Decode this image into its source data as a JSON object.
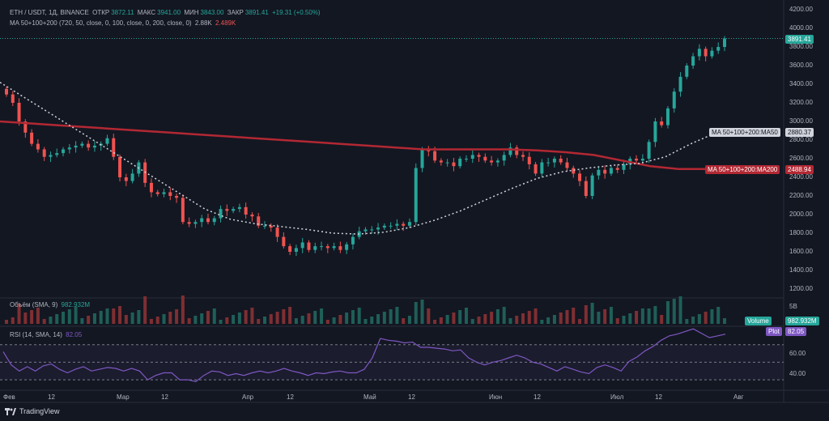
{
  "header": {
    "symbol": "ETH / USDT, 1Д, BINANCE",
    "open_label": "ОТКР",
    "open": "3872.11",
    "high_label": "МАКС",
    "high": "3941.00",
    "low_label": "МИН",
    "low": "3843.00",
    "close_label": "ЗАКР",
    "close": "3891.41",
    "change": "+19.31 (+0.50%)"
  },
  "ma_legend": {
    "title": "MA 50+100+200 (720, 50, close, 0, 100, close, 0, 200, close, 0)",
    "v1": "2.88K",
    "v2": "2.489K"
  },
  "volume_legend": {
    "title": "Объём (SMA, 9)",
    "value": "982.932M"
  },
  "rsi_legend": {
    "title": "RSI (14, SMA, 14)",
    "value": "82.05"
  },
  "price_axis": [
    "4200.00",
    "4000.00",
    "3800.00",
    "3600.00",
    "3400.00",
    "3200.00",
    "3000.00",
    "2800.00",
    "2600.00",
    "2400.00",
    "2200.00",
    "2000.00",
    "1800.00",
    "1600.00",
    "1400.00",
    "1200.00"
  ],
  "volume_axis": [
    "5B"
  ],
  "rsi_axis": [
    "60.00",
    "40.00"
  ],
  "time_axis": [
    "Фев",
    "12",
    "Мар",
    "12",
    "Апр",
    "12",
    "Май",
    "12",
    "Июн",
    "12",
    "Июл",
    "12",
    "Авг"
  ],
  "tags": {
    "last_price": "3891.41",
    "ma50": "MA 50+100+200:MA50",
    "ma50_value": "2880.37",
    "ma200": "MA 50+100+200:MA200",
    "ma200_value": "2488.94",
    "volume_label": "Volume",
    "volume_value": "982.932M",
    "rsi_label": "Plot",
    "rsi_value": "82.05"
  },
  "footer": {
    "brand": "TradingView"
  },
  "colors": {
    "bg": "#131722",
    "up": "#26a69a",
    "down": "#ef5350",
    "ma50": "#d1d4dc",
    "ma200": "#b22833",
    "rsi": "#7e57c2"
  },
  "chart_data": {
    "type": "candlestick",
    "price_range": [
      1200,
      4200
    ],
    "rsi_range": [
      20,
      90
    ],
    "rsi_levels": [
      70,
      50,
      30
    ],
    "close_series": [
      3290,
      3200,
      3000,
      2880,
      2760,
      2700,
      2620,
      2640,
      2660,
      2700,
      2720,
      2740,
      2760,
      2720,
      2740,
      2760,
      2820,
      2620,
      2400,
      2360,
      2440,
      2560,
      2340,
      2240,
      2220,
      2240,
      2200,
      2180,
      1920,
      1900,
      1920,
      1960,
      1920,
      1960,
      2060,
      2040,
      2060,
      2080,
      2000,
      1980,
      1880,
      1880,
      1860,
      1760,
      1660,
      1600,
      1640,
      1700,
      1620,
      1660,
      1660,
      1640,
      1660,
      1620,
      1680,
      1760,
      1820,
      1840,
      1840,
      1860,
      1880,
      1880,
      1900,
      1880,
      1920,
      2500,
      2700,
      2680,
      2580,
      2560,
      2560,
      2520,
      2600,
      2600,
      2640,
      2620,
      2580,
      2560,
      2580,
      2640,
      2720,
      2640,
      2620,
      2540,
      2440,
      2560,
      2560,
      2600,
      2560,
      2500,
      2440,
      2360,
      2200,
      2420,
      2480,
      2440,
      2500,
      2480,
      2540,
      2600,
      2580,
      2600,
      2780,
      3000,
      2960,
      3140,
      3320,
      3480,
      3600,
      3700,
      3780,
      3700,
      3760,
      3800,
      3891
    ],
    "ma50": [
      3420,
      3250,
      3080,
      2910,
      2740,
      2570,
      2400,
      2230,
      2060,
      1950,
      1900,
      1870,
      1840,
      1800,
      1790,
      1810,
      1860,
      1940,
      2040,
      2160,
      2280,
      2390,
      2460,
      2500,
      2530,
      2550,
      2620,
      2760,
      2880
    ],
    "ma200": [
      3000,
      2980,
      2960,
      2940,
      2920,
      2900,
      2880,
      2860,
      2840,
      2820,
      2800,
      2780,
      2760,
      2740,
      2720,
      2700,
      2700,
      2700,
      2700,
      2690,
      2670,
      2640,
      2580,
      2520,
      2489,
      2489
    ],
    "rsi": [
      62,
      47,
      40,
      45,
      40,
      46,
      48,
      42,
      38,
      42,
      45,
      40,
      42,
      44,
      43,
      40,
      43,
      40,
      30,
      35,
      38,
      38,
      30,
      30,
      28,
      35,
      40,
      39,
      35,
      37,
      35,
      38,
      40,
      38,
      40,
      43,
      40,
      38,
      35,
      38,
      37,
      39,
      40,
      38,
      38,
      42,
      55,
      77,
      75,
      74,
      72,
      73,
      67,
      67,
      66,
      65,
      63,
      64,
      55,
      50,
      47,
      50,
      52,
      55,
      58,
      55,
      50,
      48,
      44,
      40,
      45,
      42,
      39,
      37,
      44,
      47,
      44,
      40,
      51,
      56,
      63,
      68,
      75,
      80,
      82,
      85,
      88,
      83,
      78,
      80,
      82
    ]
  }
}
